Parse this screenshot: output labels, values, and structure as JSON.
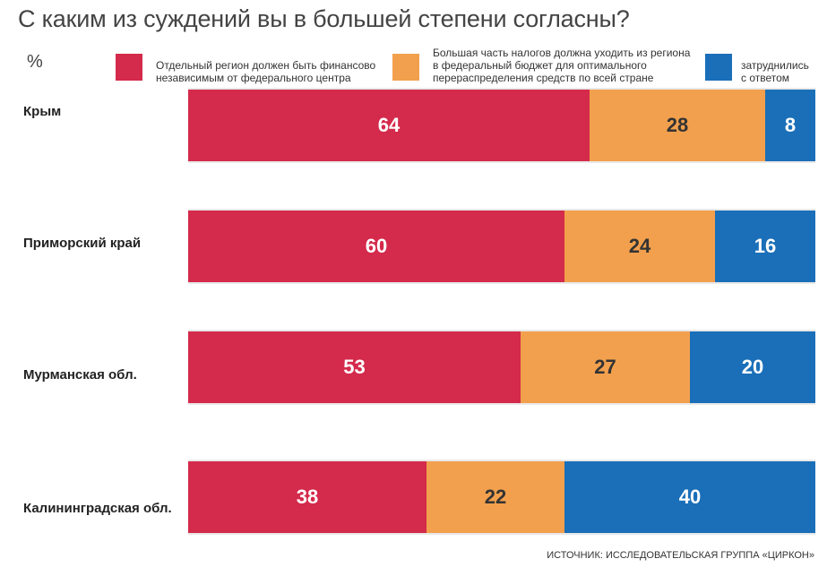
{
  "chart_data": {
    "type": "bar",
    "orientation": "horizontal",
    "stacked": true,
    "title": "С каким из суждений вы в большей степени согласны?",
    "unit": "%",
    "categories": [
      "Крым",
      "Приморский край",
      "Мурманская обл.",
      "Калининградская обл."
    ],
    "series": [
      {
        "name": "Отдельный регион должен быть финансово независимым от федерального центра",
        "color": "#d42a4b",
        "values": [
          64,
          60,
          53,
          38
        ]
      },
      {
        "name": "Большая часть налогов должна уходить из региона в федеральный бюджет для оптимального перераспределения средств по всей стране",
        "color": "#f2a04d",
        "values": [
          28,
          24,
          27,
          22
        ]
      },
      {
        "name": "затруднились с ответом",
        "color": "#1a6fb8",
        "values": [
          8,
          16,
          20,
          40
        ]
      }
    ],
    "xlim": [
      0,
      100
    ],
    "source": "ИСТОЧНИК: ИССЛЕДОВАТЕЛЬСКАЯ ГРУППА «ЦИРКОН»"
  },
  "legend": [
    {
      "line1": "Отдельный регион должен быть финансово",
      "line2": "независимым от федерального центра",
      "line3": ""
    },
    {
      "line1": "Большая часть налогов должна уходить из региона",
      "line2": "в федеральный бюджет для оптимального",
      "line3": "перераспределения средств по всей стране"
    },
    {
      "line1": "затруднились",
      "line2": "с ответом",
      "line3": ""
    }
  ],
  "label_colors": {
    "on_red": "#ffffff",
    "on_orange": "#333333",
    "on_blue": "#ffffff"
  }
}
